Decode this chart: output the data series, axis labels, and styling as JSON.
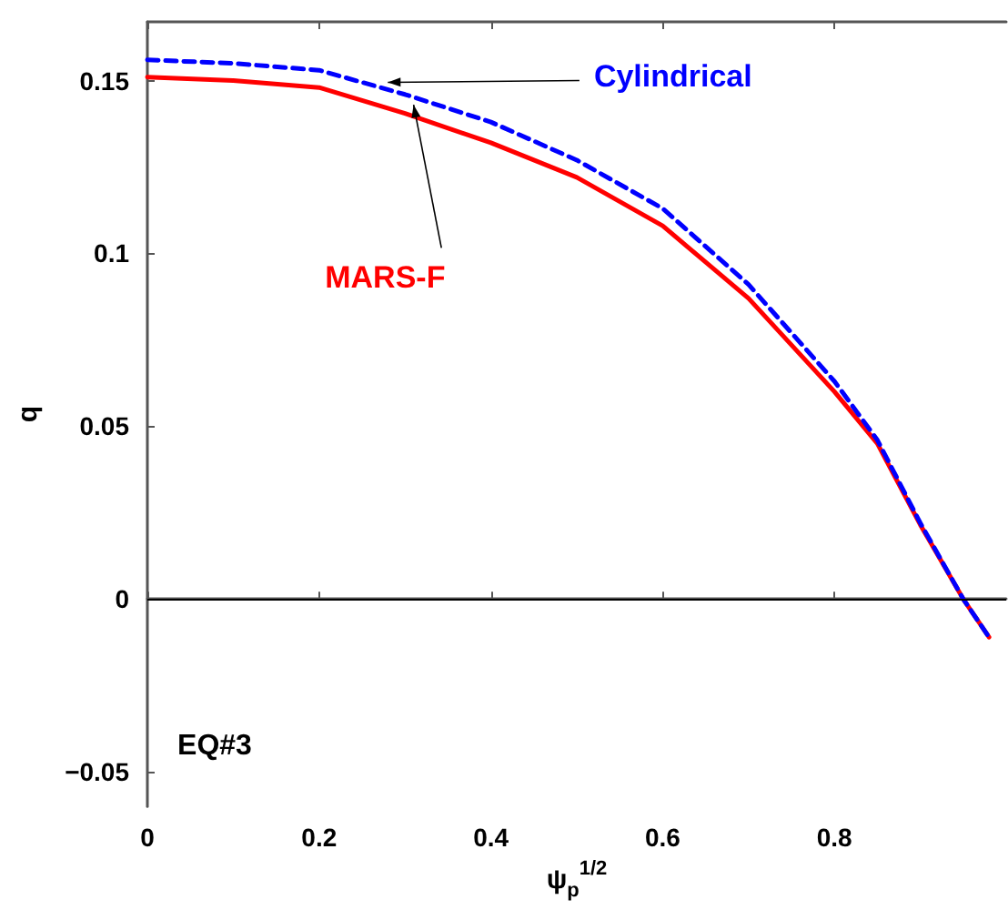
{
  "chart_data": {
    "type": "line",
    "x": [
      0,
      0.1,
      0.2,
      0.3,
      0.4,
      0.5,
      0.6,
      0.7,
      0.8,
      0.85,
      0.9,
      0.95,
      0.98
    ],
    "series": [
      {
        "name": "MARS-F",
        "color": "#ff0000",
        "line_style": "solid",
        "values": [
          0.151,
          0.15,
          0.148,
          0.1405,
          0.132,
          0.122,
          0.108,
          0.087,
          0.06,
          0.045,
          0.0215,
          0.0,
          -0.011
        ]
      },
      {
        "name": "Cylindrical",
        "color": "#0000ff",
        "line_style": "dashed",
        "values": [
          0.156,
          0.155,
          0.153,
          0.146,
          0.138,
          0.127,
          0.113,
          0.091,
          0.063,
          0.046,
          0.022,
          0.0,
          -0.011
        ]
      }
    ],
    "xlabel": "ψ$_{p}$$^{1/2}$",
    "ylabel": "q",
    "annotations": [
      "EQ#3"
    ],
    "xlim": [
      0,
      1
    ],
    "ylim": [
      -0.06,
      0.167
    ],
    "xticks": [
      0,
      0.2,
      0.4,
      0.6,
      0.8
    ],
    "yticks": [
      -0.05,
      0,
      0.05,
      0.1,
      0.15
    ],
    "ref_lines": [
      {
        "axis": "y",
        "value": 0,
        "color": "#000000"
      }
    ],
    "grid": false,
    "legend": false,
    "marker": "none"
  }
}
